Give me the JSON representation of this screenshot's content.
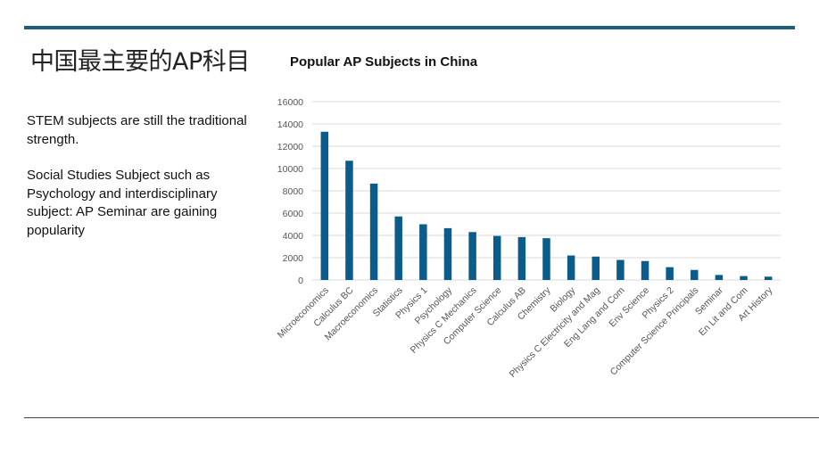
{
  "slide": {
    "title": "中国最主要的AP科目",
    "paragraphs": [
      "STEM subjects are still the traditional strength.",
      "Social Studies Subject such as Psychology and interdisciplinary subject: AP Seminar are gaining popularity"
    ]
  },
  "colors": {
    "bar": "#0b5c8a",
    "accent_rule": "#1f5f7a",
    "grid": "#d9d9d9"
  },
  "chart_data": {
    "type": "bar",
    "title": "Popular AP Subjects in China",
    "xlabel": "",
    "ylabel": "",
    "ylim": [
      0,
      16000
    ],
    "yticks": [
      0,
      2000,
      4000,
      6000,
      8000,
      10000,
      12000,
      14000,
      16000
    ],
    "ytick_labels": [
      "0",
      "2000",
      "4000",
      "6000",
      "8000",
      "10000",
      "12000",
      "14000",
      "16000"
    ],
    "grid": true,
    "legend": "none",
    "categories": [
      "Microeconomics",
      "Calculus BC",
      "Macroeconomics",
      "Statistics",
      "Physics 1",
      "Psychology",
      "Physics C Mechanics",
      "Computer Science",
      "Calculus AB",
      "Chemistry",
      "Biology",
      "Physics C Electricity and Mag",
      "Eng Lang and Com",
      "Env Science",
      "Physics 2",
      "Computer Science Principals",
      "Seminar",
      "En Lit and Com",
      "Art History"
    ],
    "values": [
      13300,
      10700,
      8650,
      5700,
      5000,
      4650,
      4300,
      3950,
      3850,
      3750,
      2200,
      2100,
      1800,
      1700,
      1150,
      900,
      450,
      350,
      300
    ]
  }
}
